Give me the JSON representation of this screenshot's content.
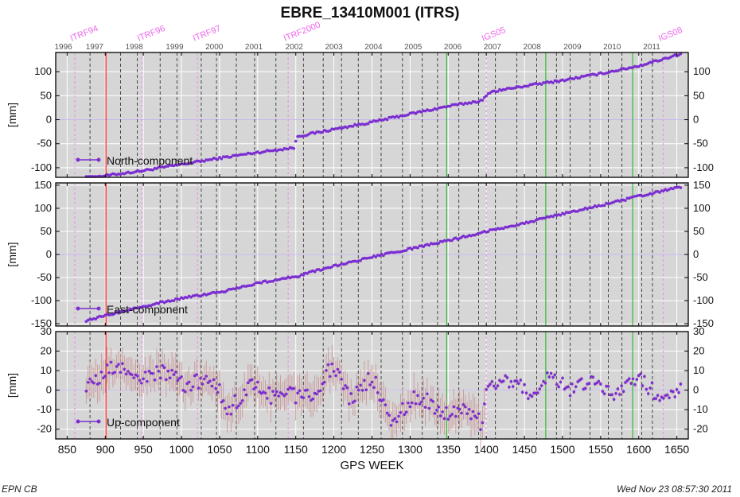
{
  "chart": {
    "title": "EBRE_13410M001 (ITRS)",
    "xlabel": "GPS WEEK",
    "footer_left": "EPN CB",
    "footer_right": "Wed Nov 23 08:57:30 2011"
  },
  "colors": {
    "panel_bg": "#d6d6d6",
    "grid": "#ffffff",
    "data": "#7b2fd0",
    "error_bars": "#c9908f",
    "event_line": "#ee88ee",
    "event_label": "#ee66ee",
    "red_line": "#ff2a2a",
    "green_line": "#33bb33",
    "dashed_line": "#222222"
  },
  "chart_data": [
    {
      "type": "scatter",
      "series": [
        {
          "name": "North-component",
          "x": [
            875,
            950,
            1000,
            1050,
            1100,
            1149,
            1151,
            1200,
            1250,
            1300,
            1350,
            1395,
            1405,
            1450,
            1500,
            1550,
            1600,
            1655
          ],
          "y": [
            -122,
            -106,
            -93,
            -80,
            -68,
            -58,
            -35,
            -20,
            -5,
            12,
            28,
            40,
            58,
            70,
            82,
            96,
            112,
            137
          ]
        }
      ],
      "ylabel": "[mm]",
      "ylim": [
        -120,
        140
      ],
      "yticks": [
        -100,
        -50,
        0,
        50,
        100
      ]
    },
    {
      "type": "scatter",
      "series": [
        {
          "name": "East-component",
          "x": [
            875,
            950,
            1000,
            1050,
            1100,
            1150,
            1200,
            1250,
            1300,
            1350,
            1400,
            1450,
            1500,
            1550,
            1600,
            1655
          ],
          "y": [
            -143,
            -112,
            -95,
            -82,
            -62,
            -48,
            -25,
            -6,
            12,
            30,
            50,
            68,
            88,
            106,
            126,
            146
          ]
        }
      ],
      "ylabel": "[mm]",
      "ylim": [
        -155,
        155
      ],
      "yticks": [
        -150,
        -100,
        -50,
        0,
        50,
        100,
        150
      ]
    },
    {
      "type": "scatter",
      "series": [
        {
          "name": "Up-component",
          "x": [
            875,
            900,
            950,
            1000,
            1050,
            1060,
            1100,
            1150,
            1180,
            1200,
            1220,
            1250,
            1270,
            1300,
            1350,
            1395,
            1400,
            1450,
            1500,
            1550,
            1600,
            1655
          ],
          "y": [
            3,
            10,
            8,
            6,
            0,
            -8,
            2,
            -5,
            4,
            10,
            -2,
            6,
            -15,
            -5,
            -10,
            -15,
            3,
            2,
            4,
            1,
            3,
            -2
          ]
        }
      ],
      "ylabel": "[mm]",
      "ylim": [
        -25,
        30
      ],
      "yticks": [
        -20,
        -10,
        0,
        10,
        20,
        30
      ]
    }
  ],
  "x_axis": {
    "xlim": [
      835,
      1665
    ],
    "bottom_ticks": [
      850,
      900,
      950,
      1000,
      1050,
      1100,
      1150,
      1200,
      1250,
      1300,
      1350,
      1400,
      1450,
      1500,
      1550,
      1600,
      1650
    ],
    "years": [
      {
        "label": "1996",
        "week": 845
      },
      {
        "label": "1997",
        "week": 886
      },
      {
        "label": "1998",
        "week": 938
      },
      {
        "label": "1999",
        "week": 991
      },
      {
        "label": "2000",
        "week": 1043
      },
      {
        "label": "2001",
        "week": 1095
      },
      {
        "label": "2002",
        "week": 1148
      },
      {
        "label": "2003",
        "week": 1200
      },
      {
        "label": "2004",
        "week": 1252
      },
      {
        "label": "2005",
        "week": 1304
      },
      {
        "label": "2006",
        "week": 1356
      },
      {
        "label": "2007",
        "week": 1408
      },
      {
        "label": "2008",
        "week": 1460
      },
      {
        "label": "2009",
        "week": 1513
      },
      {
        "label": "2010",
        "week": 1565
      },
      {
        "label": "2011",
        "week": 1617
      }
    ],
    "frames": [
      {
        "label": "ITRF94",
        "week": 860
      },
      {
        "label": "ITRF96",
        "week": 948
      },
      {
        "label": "ITRF97",
        "week": 1021
      },
      {
        "label": "ITRF2000",
        "week": 1140
      },
      {
        "label": "IGS05",
        "week": 1400
      },
      {
        "label": "IGS08",
        "week": 1632
      }
    ],
    "red_lines": [
      901
    ],
    "green_lines": [
      1348,
      1478,
      1592
    ],
    "dashed_lines": [
      880,
      920,
      942,
      972,
      994,
      1026,
      1046,
      1072,
      1096,
      1124,
      1160,
      1186,
      1210,
      1232,
      1262,
      1290,
      1316,
      1336,
      1364,
      1390,
      1412,
      1440,
      1466,
      1492,
      1510,
      1536,
      1560,
      1578,
      1604,
      1618
    ]
  }
}
